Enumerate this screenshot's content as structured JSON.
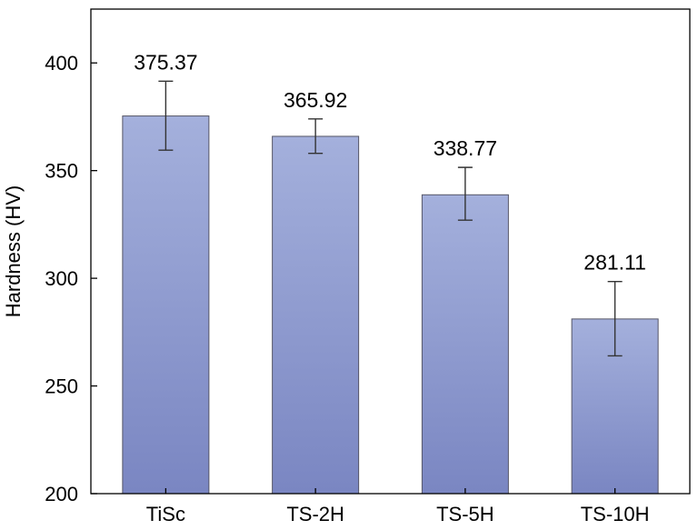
{
  "chart_data": {
    "type": "bar",
    "categories": [
      "TiSc",
      "TS-2H",
      "TS-5H",
      "TS-10H"
    ],
    "values": [
      375.37,
      365.92,
      338.77,
      281.11
    ],
    "error_low": [
      359.5,
      358.0,
      327.0,
      264.0
    ],
    "error_high": [
      391.5,
      374.0,
      351.5,
      298.5
    ],
    "data_labels": [
      "375.37",
      "365.92",
      "338.77",
      "281.11"
    ],
    "title": "",
    "xlabel": "",
    "ylabel": "Hardness (HV)",
    "ylim": [
      200,
      425
    ],
    "yticks": [
      200,
      250,
      300,
      350,
      400
    ],
    "ytick_labels": [
      "200",
      "250",
      "300",
      "350",
      "400"
    ],
    "grid": false,
    "legend": "none",
    "colors": {
      "bar_top": "#a4b0dc",
      "bar_bottom": "#7a86c2",
      "bar_edge": "#555566",
      "error_bar": "#333333",
      "axis": "#000000"
    }
  }
}
